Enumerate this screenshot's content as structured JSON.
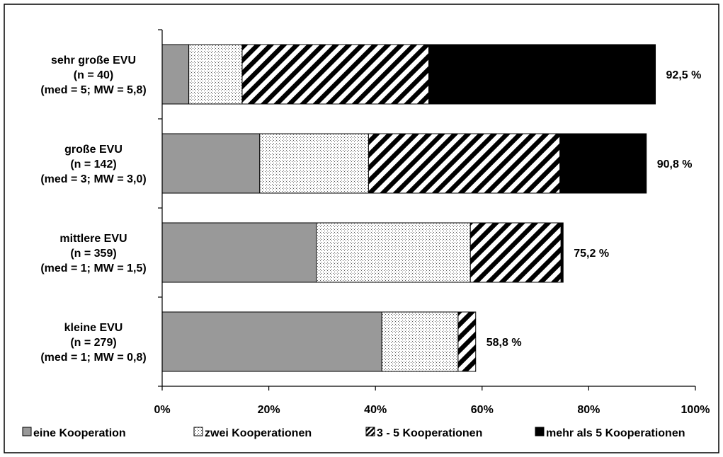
{
  "chart_data": {
    "type": "bar",
    "orientation": "horizontal",
    "stacked": true,
    "categories": [
      [
        "sehr große EVU",
        "(n = 40)",
        "(med = 5; MW = 5,8)"
      ],
      [
        "große EVU",
        "(n = 142)",
        "(med = 3; MW = 3,0)"
      ],
      [
        "mittlere EVU",
        "(n = 359)",
        "(med = 1; MW = 1,5)"
      ],
      [
        "kleine EVU",
        "(n = 279)",
        "(med = 1; MW = 0,8)"
      ]
    ],
    "series": [
      {
        "name": "eine Kooperation",
        "values": [
          5.0,
          18.3,
          28.9,
          41.2
        ],
        "color": "#999999",
        "pattern": "solid"
      },
      {
        "name": "zwei Kooperationen",
        "values": [
          10.0,
          20.4,
          28.9,
          14.3
        ],
        "color": "#ffffff",
        "pattern": "dots"
      },
      {
        "name": "3 - 5 Kooperationen",
        "values": [
          35.0,
          35.9,
          17.0,
          3.3
        ],
        "color": "#000000",
        "pattern": "diagonal-stripes"
      },
      {
        "name": "mehr als 5 Kooperationen",
        "values": [
          42.5,
          16.2,
          0.4,
          0.0
        ],
        "color": "#000000",
        "pattern": "solid"
      }
    ],
    "totals": [
      "92,5 %",
      "90,8 %",
      "75,2 %",
      "58,8 %"
    ],
    "xlim": [
      0,
      100
    ],
    "xticks": [
      "0%",
      "20%",
      "40%",
      "60%",
      "80%",
      "100%"
    ],
    "grid": false,
    "legend_position": "bottom"
  }
}
